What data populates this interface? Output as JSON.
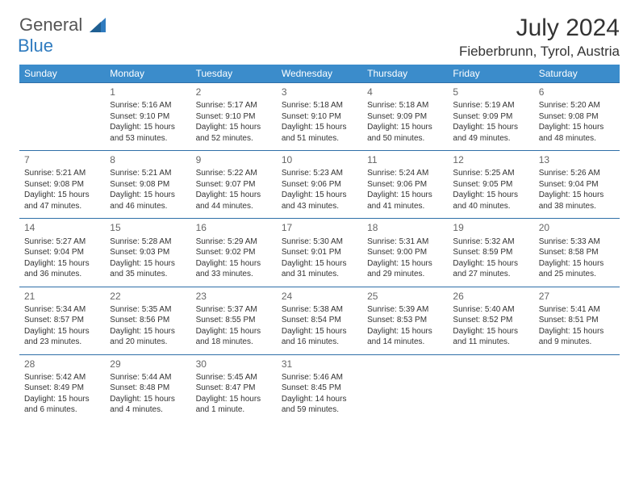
{
  "logo": {
    "word1": "General",
    "word2": "Blue"
  },
  "title": "July 2024",
  "location": "Fieberbrunn, Tyrol, Austria",
  "colors": {
    "header_bg": "#3b8ccb",
    "header_text": "#ffffff",
    "row_border": "#2f6fa8",
    "daynum": "#666666",
    "body_text": "#333333",
    "logo_blue": "#2f7bbf"
  },
  "day_headers": [
    "Sunday",
    "Monday",
    "Tuesday",
    "Wednesday",
    "Thursday",
    "Friday",
    "Saturday"
  ],
  "weeks": [
    [
      null,
      {
        "n": "1",
        "sr": "5:16 AM",
        "ss": "9:10 PM",
        "dl": "15 hours and 53 minutes."
      },
      {
        "n": "2",
        "sr": "5:17 AM",
        "ss": "9:10 PM",
        "dl": "15 hours and 52 minutes."
      },
      {
        "n": "3",
        "sr": "5:18 AM",
        "ss": "9:10 PM",
        "dl": "15 hours and 51 minutes."
      },
      {
        "n": "4",
        "sr": "5:18 AM",
        "ss": "9:09 PM",
        "dl": "15 hours and 50 minutes."
      },
      {
        "n": "5",
        "sr": "5:19 AM",
        "ss": "9:09 PM",
        "dl": "15 hours and 49 minutes."
      },
      {
        "n": "6",
        "sr": "5:20 AM",
        "ss": "9:08 PM",
        "dl": "15 hours and 48 minutes."
      }
    ],
    [
      {
        "n": "7",
        "sr": "5:21 AM",
        "ss": "9:08 PM",
        "dl": "15 hours and 47 minutes."
      },
      {
        "n": "8",
        "sr": "5:21 AM",
        "ss": "9:08 PM",
        "dl": "15 hours and 46 minutes."
      },
      {
        "n": "9",
        "sr": "5:22 AM",
        "ss": "9:07 PM",
        "dl": "15 hours and 44 minutes."
      },
      {
        "n": "10",
        "sr": "5:23 AM",
        "ss": "9:06 PM",
        "dl": "15 hours and 43 minutes."
      },
      {
        "n": "11",
        "sr": "5:24 AM",
        "ss": "9:06 PM",
        "dl": "15 hours and 41 minutes."
      },
      {
        "n": "12",
        "sr": "5:25 AM",
        "ss": "9:05 PM",
        "dl": "15 hours and 40 minutes."
      },
      {
        "n": "13",
        "sr": "5:26 AM",
        "ss": "9:04 PM",
        "dl": "15 hours and 38 minutes."
      }
    ],
    [
      {
        "n": "14",
        "sr": "5:27 AM",
        "ss": "9:04 PM",
        "dl": "15 hours and 36 minutes."
      },
      {
        "n": "15",
        "sr": "5:28 AM",
        "ss": "9:03 PM",
        "dl": "15 hours and 35 minutes."
      },
      {
        "n": "16",
        "sr": "5:29 AM",
        "ss": "9:02 PM",
        "dl": "15 hours and 33 minutes."
      },
      {
        "n": "17",
        "sr": "5:30 AM",
        "ss": "9:01 PM",
        "dl": "15 hours and 31 minutes."
      },
      {
        "n": "18",
        "sr": "5:31 AM",
        "ss": "9:00 PM",
        "dl": "15 hours and 29 minutes."
      },
      {
        "n": "19",
        "sr": "5:32 AM",
        "ss": "8:59 PM",
        "dl": "15 hours and 27 minutes."
      },
      {
        "n": "20",
        "sr": "5:33 AM",
        "ss": "8:58 PM",
        "dl": "15 hours and 25 minutes."
      }
    ],
    [
      {
        "n": "21",
        "sr": "5:34 AM",
        "ss": "8:57 PM",
        "dl": "15 hours and 23 minutes."
      },
      {
        "n": "22",
        "sr": "5:35 AM",
        "ss": "8:56 PM",
        "dl": "15 hours and 20 minutes."
      },
      {
        "n": "23",
        "sr": "5:37 AM",
        "ss": "8:55 PM",
        "dl": "15 hours and 18 minutes."
      },
      {
        "n": "24",
        "sr": "5:38 AM",
        "ss": "8:54 PM",
        "dl": "15 hours and 16 minutes."
      },
      {
        "n": "25",
        "sr": "5:39 AM",
        "ss": "8:53 PM",
        "dl": "15 hours and 14 minutes."
      },
      {
        "n": "26",
        "sr": "5:40 AM",
        "ss": "8:52 PM",
        "dl": "15 hours and 11 minutes."
      },
      {
        "n": "27",
        "sr": "5:41 AM",
        "ss": "8:51 PM",
        "dl": "15 hours and 9 minutes."
      }
    ],
    [
      {
        "n": "28",
        "sr": "5:42 AM",
        "ss": "8:49 PM",
        "dl": "15 hours and 6 minutes."
      },
      {
        "n": "29",
        "sr": "5:44 AM",
        "ss": "8:48 PM",
        "dl": "15 hours and 4 minutes."
      },
      {
        "n": "30",
        "sr": "5:45 AM",
        "ss": "8:47 PM",
        "dl": "15 hours and 1 minute."
      },
      {
        "n": "31",
        "sr": "5:46 AM",
        "ss": "8:45 PM",
        "dl": "14 hours and 59 minutes."
      },
      null,
      null,
      null
    ]
  ],
  "labels": {
    "sunrise": "Sunrise: ",
    "sunset": "Sunset: ",
    "daylight": "Daylight: "
  }
}
